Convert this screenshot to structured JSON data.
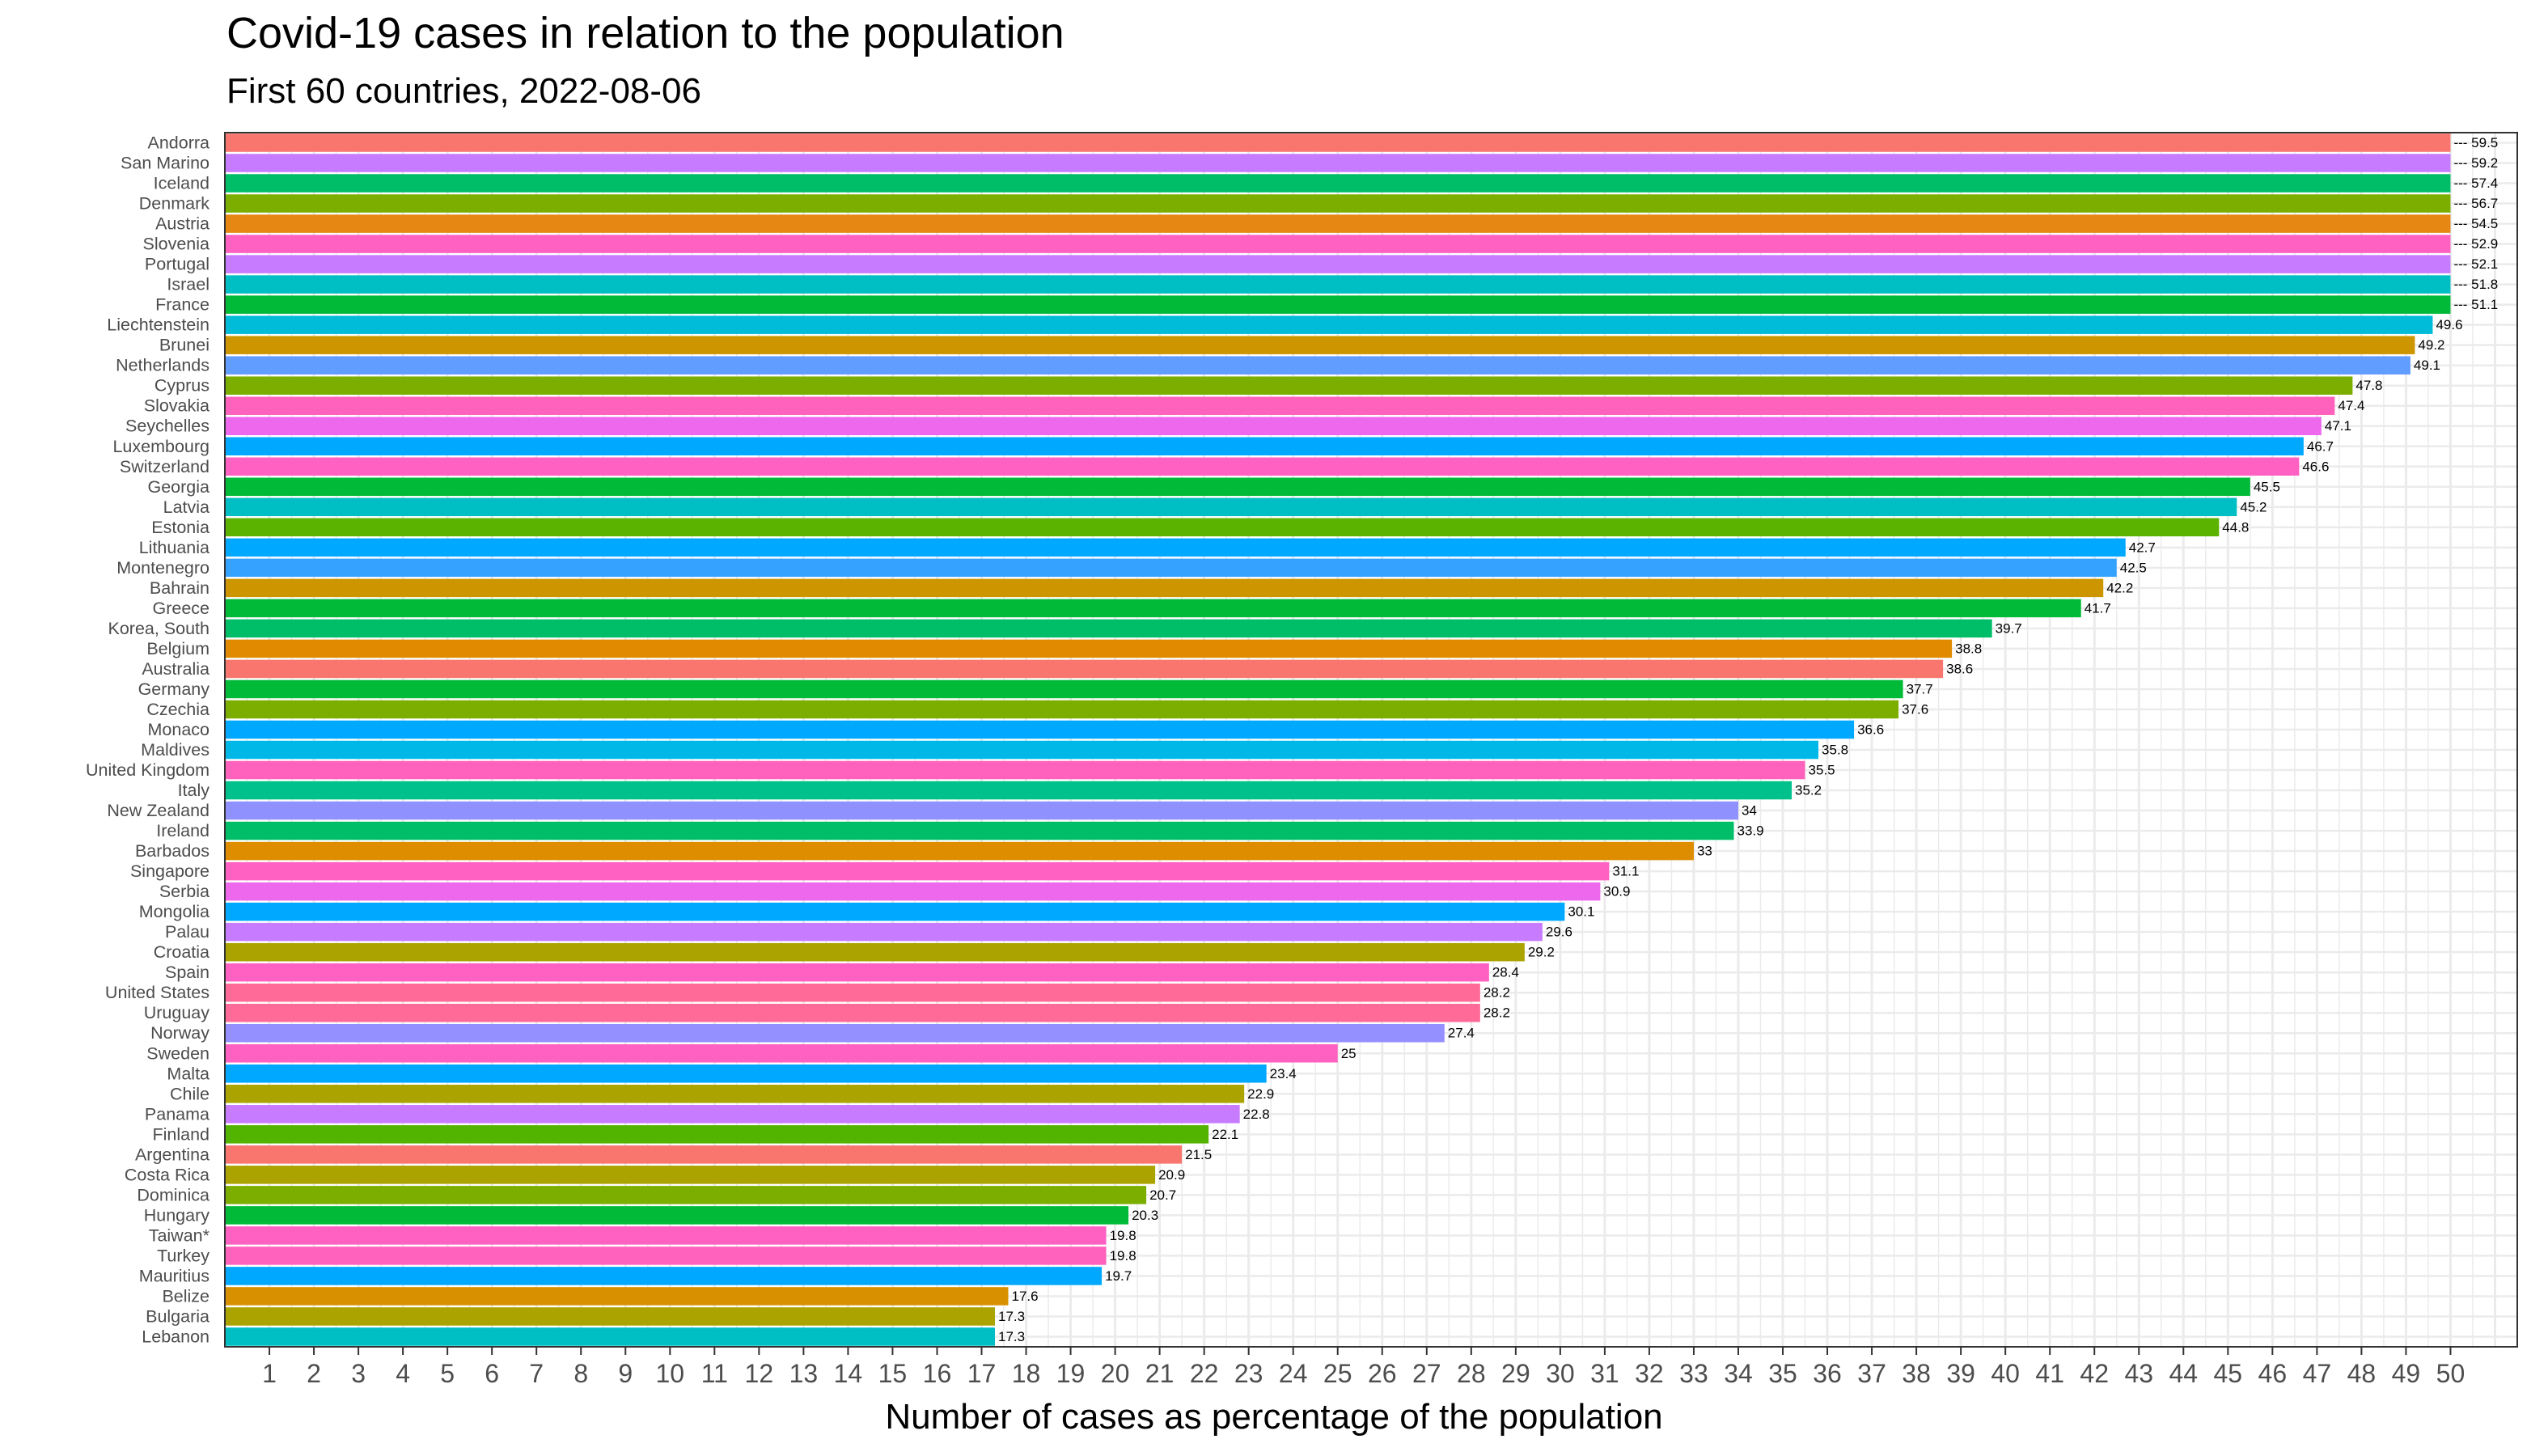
{
  "title": "Covid-19 cases in relation to the population",
  "subtitle": "First 60 countries, 2022-08-06",
  "chart_data": {
    "type": "bar",
    "orientation": "horizontal",
    "title": "Covid-19 cases in relation to the population",
    "subtitle": "First 60 countries, 2022-08-06",
    "xlabel": "Number of cases as percentage of the population",
    "ylabel": "",
    "xlim": [
      0,
      51.5
    ],
    "xticks": [
      1,
      2,
      3,
      4,
      5,
      6,
      7,
      8,
      9,
      10,
      11,
      12,
      13,
      14,
      15,
      16,
      17,
      18,
      19,
      20,
      21,
      22,
      23,
      24,
      25,
      26,
      27,
      28,
      29,
      30,
      31,
      32,
      33,
      34,
      35,
      36,
      37,
      38,
      39,
      40,
      41,
      42,
      43,
      44,
      45,
      46,
      47,
      48,
      49,
      50
    ],
    "grid": true,
    "clip_value": 50,
    "clipped_label_prefix": "---",
    "categories": [
      "Andorra",
      "San Marino",
      "Iceland",
      "Denmark",
      "Austria",
      "Slovenia",
      "Portugal",
      "Israel",
      "France",
      "Liechtenstein",
      "Brunei",
      "Netherlands",
      "Cyprus",
      "Slovakia",
      "Seychelles",
      "Luxembourg",
      "Switzerland",
      "Georgia",
      "Latvia",
      "Estonia",
      "Lithuania",
      "Montenegro",
      "Bahrain",
      "Greece",
      "Korea, South",
      "Belgium",
      "Australia",
      "Germany",
      "Czechia",
      "Monaco",
      "Maldives",
      "United Kingdom",
      "Italy",
      "New Zealand",
      "Ireland",
      "Barbados",
      "Singapore",
      "Serbia",
      "Mongolia",
      "Palau",
      "Croatia",
      "Spain",
      "United States",
      "Uruguay",
      "Norway",
      "Sweden",
      "Malta",
      "Chile",
      "Panama",
      "Finland",
      "Argentina",
      "Costa Rica",
      "Dominica",
      "Hungary",
      "Taiwan*",
      "Turkey",
      "Mauritius",
      "Belize",
      "Bulgaria",
      "Lebanon"
    ],
    "values": [
      59.5,
      59.2,
      57.4,
      56.7,
      54.5,
      52.9,
      52.1,
      51.8,
      51.1,
      49.6,
      49.2,
      49.1,
      47.8,
      47.4,
      47.1,
      46.7,
      46.6,
      45.5,
      45.2,
      44.8,
      42.7,
      42.5,
      42.2,
      41.7,
      39.7,
      38.8,
      38.6,
      37.7,
      37.6,
      36.6,
      35.8,
      35.5,
      35.2,
      34,
      33.9,
      33,
      31.1,
      30.9,
      30.1,
      29.6,
      29.2,
      28.4,
      28.2,
      28.2,
      27.4,
      25,
      23.4,
      22.9,
      22.8,
      22.1,
      21.5,
      20.9,
      20.7,
      20.3,
      19.8,
      19.8,
      19.7,
      17.6,
      17.3,
      17.3
    ],
    "colors": [
      "#F8766D",
      "#C77CFF",
      "#00BE67",
      "#7CAE00",
      "#E68613",
      "#FF61C3",
      "#C77CFF",
      "#00BFC4",
      "#00BA38",
      "#00BCD8",
      "#CD9600",
      "#619CFF",
      "#7CAE00",
      "#FF62BC",
      "#ED68ED",
      "#00A9FF",
      "#FF61C3",
      "#00BA38",
      "#00BFC4",
      "#5BB300",
      "#00A9FF",
      "#35A2FF",
      "#CD9600",
      "#00BA38",
      "#00BE67",
      "#E18A00",
      "#F8766D",
      "#00BA38",
      "#7CAE00",
      "#00A9FF",
      "#00B8E7",
      "#FF62BC",
      "#00C08B",
      "#8F91FF",
      "#00BE67",
      "#DE8C00",
      "#FF61C3",
      "#ED68ED",
      "#00A9FF",
      "#C77CFF",
      "#ABA300",
      "#FF61C3",
      "#FF6A98",
      "#FF6A98",
      "#9590FF",
      "#FF61C3",
      "#00A9FF",
      "#ABA300",
      "#C77CFF",
      "#53B400",
      "#F8766D",
      "#ABA300",
      "#7CAE00",
      "#00BA38",
      "#FF61C3",
      "#FF62BC",
      "#00A9FF",
      "#D89000",
      "#ABA300",
      "#00BFC4"
    ],
    "value_labels": [
      "--- 59.5",
      "--- 59.2",
      "--- 57.4",
      "--- 56.7",
      "--- 54.5",
      "--- 52.9",
      "--- 52.1",
      "--- 51.8",
      "--- 51.1",
      "49.6",
      "49.2",
      "49.1",
      "47.8",
      "47.4",
      "47.1",
      "46.7",
      "46.6",
      "45.5",
      "45.2",
      "44.8",
      "42.7",
      "42.5",
      "42.2",
      "41.7",
      "39.7",
      "38.8",
      "38.6",
      "37.7",
      "37.6",
      "36.6",
      "35.8",
      "35.5",
      "35.2",
      "34",
      "33.9",
      "33",
      "31.1",
      "30.9",
      "30.1",
      "29.6",
      "29.2",
      "28.4",
      "28.2",
      "28.2",
      "27.4",
      "25",
      "23.4",
      "22.9",
      "22.8",
      "22.1",
      "21.5",
      "20.9",
      "20.7",
      "20.3",
      "19.8",
      "19.8",
      "19.7",
      "17.6",
      "17.3",
      "17.3"
    ]
  }
}
